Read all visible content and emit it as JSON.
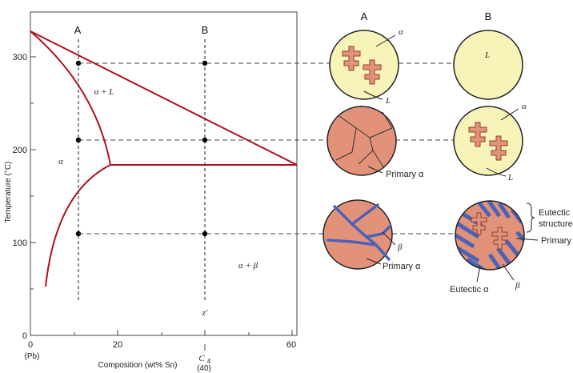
{
  "axes": {
    "y_label": "Temperature (°C)",
    "y_ticks": [
      "0",
      "100",
      "200",
      "300"
    ],
    "x_label": "Composition (wt% Sn)",
    "x_ticks": [
      "0",
      "20",
      "60"
    ],
    "x_origin_sub": "(Pb)",
    "c4_label": "C",
    "c4_sub": "4",
    "c4_value": "(40)"
  },
  "regions": {
    "alpha_plus_l": "α + L",
    "alpha": "α",
    "alpha_plus_beta": "α + β"
  },
  "paths": {
    "a_label": "A",
    "b_label": "B",
    "z_label": "z′"
  },
  "columns": {
    "a_header": "A",
    "b_header": "B"
  },
  "micro_labels": {
    "a1_alpha": "α",
    "a1_l": "L",
    "b1_l": "L",
    "a2_primary": "Primary α",
    "b2_alpha": "α",
    "b2_l": "L",
    "a3_beta": "β",
    "a3_primary": "Primary α",
    "eutectic_structure_1": "Eutectic",
    "eutectic_structure_2": "structure",
    "primary": "Primary",
    "eutectic_alpha": "Eutectic α",
    "b3_beta": "β"
  },
  "colors": {
    "liquidus": "#b01020",
    "alpha_phase": "#e3927a",
    "liquid": "#f8f3b8",
    "beta_phase": "#4a62b8",
    "outline": "#222222"
  }
}
